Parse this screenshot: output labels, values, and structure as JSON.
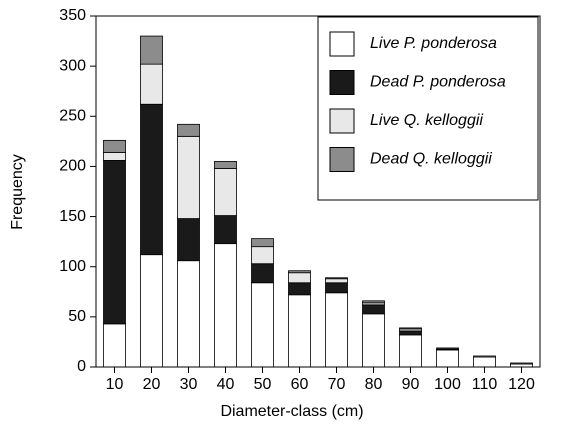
{
  "chart_data": {
    "type": "stacked_bar",
    "x_label": "Diameter-class (cm)",
    "y_label": "Frequency",
    "categories": [
      "10",
      "20",
      "30",
      "40",
      "50",
      "60",
      "70",
      "80",
      "90",
      "100",
      "110",
      "120"
    ],
    "series": [
      {
        "name": "Live P. ponderosa",
        "color": "#ffffff",
        "values": [
          43,
          112,
          106,
          123,
          84,
          72,
          74,
          53,
          32,
          17,
          10,
          3
        ]
      },
      {
        "name": "Dead P. ponderosa",
        "color": "#1a1a1a",
        "values": [
          163,
          150,
          42,
          28,
          19,
          12,
          10,
          9,
          4,
          1,
          0,
          0
        ]
      },
      {
        "name": "Live Q. kelloggii",
        "color": "#e8e8e8",
        "values": [
          8,
          40,
          82,
          47,
          17,
          10,
          4,
          2,
          2,
          0,
          1,
          0
        ]
      },
      {
        "name": "Dead Q. kelloggii",
        "color": "#8c8c8c",
        "values": [
          12,
          28,
          12,
          7,
          8,
          2,
          1,
          2,
          1,
          1,
          0,
          1
        ]
      }
    ],
    "ylim": [
      0,
      350
    ],
    "yticks": [
      0,
      50,
      100,
      150,
      200,
      250,
      300,
      350
    ],
    "legend": "top-right"
  }
}
